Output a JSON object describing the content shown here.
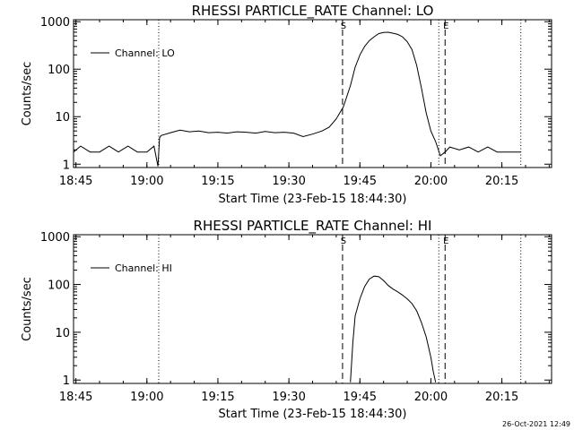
{
  "colors": {
    "background": "#ffffff",
    "foreground": "#000000"
  },
  "date_stamp": "26-Oct-2021 12:49",
  "chart_data": [
    {
      "type": "line",
      "title": "RHESSI PARTICLE_RATE Channel: LO",
      "xlabel": "Start Time (23-Feb-15 18:44:30)",
      "ylabel": "Counts/sec",
      "yscale": "log",
      "ylim": [
        0.85,
        1100
      ],
      "xlim": [
        "18:44:30",
        "20:25:30"
      ],
      "xticks": [
        "18:45",
        "19:00",
        "19:15",
        "19:30",
        "19:45",
        "20:00",
        "20:15"
      ],
      "yticks": [
        "1",
        "10",
        "100",
        "1000"
      ],
      "grid": false,
      "legend": {
        "entries": [
          "Channel: LO"
        ],
        "position": "top-left"
      },
      "markers": [
        {
          "time": "19:02:30",
          "style": "dotted",
          "label": ""
        },
        {
          "time": "19:41:20",
          "style": "dashed",
          "label": "S"
        },
        {
          "time": "20:01:40",
          "style": "dotted",
          "label": ""
        },
        {
          "time": "20:03:00",
          "style": "dashed",
          "label": "E"
        },
        {
          "time": "20:19:00",
          "style": "dotted",
          "label": ""
        }
      ],
      "series": [
        {
          "name": "Channel: LO",
          "x": [
            "18:44:30",
            "18:46:00",
            "18:48:00",
            "18:50:00",
            "18:52:00",
            "18:54:00",
            "18:56:00",
            "18:58:00",
            "19:00:00",
            "19:01:30",
            "19:02:20",
            "19:02:40",
            "19:03:00",
            "19:05:00",
            "19:07:00",
            "19:09:00",
            "19:11:00",
            "19:13:00",
            "19:15:00",
            "19:17:00",
            "19:19:00",
            "19:21:00",
            "19:23:00",
            "19:25:00",
            "19:27:00",
            "19:29:00",
            "19:31:00",
            "19:33:00",
            "19:35:00",
            "19:37:00",
            "19:38:30",
            "19:40:00",
            "19:41:30",
            "19:43:00",
            "19:44:00",
            "19:45:00",
            "19:46:00",
            "19:47:00",
            "19:48:00",
            "19:49:00",
            "19:50:00",
            "19:51:00",
            "19:52:00",
            "19:53:00",
            "19:54:00",
            "19:55:00",
            "19:56:00",
            "19:57:00",
            "19:58:00",
            "19:59:00",
            "20:00:00",
            "20:01:00",
            "20:02:00",
            "20:03:00",
            "20:04:00",
            "20:06:00",
            "20:08:00",
            "20:10:00",
            "20:12:00",
            "20:14:00",
            "20:16:00",
            "20:18:00",
            "20:19:00"
          ],
          "y": [
            1.8,
            2.4,
            1.8,
            1.8,
            2.4,
            1.8,
            2.4,
            1.8,
            1.8,
            2.4,
            0.9,
            3.6,
            4.0,
            4.6,
            5.2,
            4.8,
            5.0,
            4.6,
            4.7,
            4.5,
            4.8,
            4.7,
            4.5,
            4.9,
            4.6,
            4.7,
            4.5,
            3.8,
            4.3,
            5.0,
            6.0,
            9.0,
            16,
            45,
            110,
            200,
            300,
            400,
            480,
            560,
            590,
            600,
            570,
            540,
            480,
            380,
            260,
            120,
            40,
            12,
            5,
            3,
            1.5,
            1.8,
            2.3,
            2.0,
            2.3,
            1.8,
            2.3,
            1.8,
            1.8,
            1.8,
            1.8
          ]
        }
      ]
    },
    {
      "type": "line",
      "title": "RHESSI PARTICLE_RATE Channel: HI",
      "xlabel": "Start Time (23-Feb-15 18:44:30)",
      "ylabel": "Counts/sec",
      "yscale": "log",
      "ylim": [
        0.85,
        1100
      ],
      "xlim": [
        "18:44:30",
        "20:25:30"
      ],
      "xticks": [
        "18:45",
        "19:00",
        "19:15",
        "19:30",
        "19:45",
        "20:00",
        "20:15"
      ],
      "yticks": [
        "1",
        "10",
        "100",
        "1000"
      ],
      "grid": false,
      "legend": {
        "entries": [
          "Channel: HI"
        ],
        "position": "top-left"
      },
      "markers": [
        {
          "time": "19:02:30",
          "style": "dotted",
          "label": ""
        },
        {
          "time": "19:41:20",
          "style": "dashed",
          "label": "S"
        },
        {
          "time": "20:01:40",
          "style": "dotted",
          "label": ""
        },
        {
          "time": "20:03:00",
          "style": "dashed",
          "label": "E"
        },
        {
          "time": "20:19:00",
          "style": "dotted",
          "label": ""
        }
      ],
      "series": [
        {
          "name": "Channel: HI",
          "x": [
            "19:43:00",
            "19:43:30",
            "19:44:00",
            "19:45:00",
            "19:46:00",
            "19:47:00",
            "19:48:00",
            "19:49:00",
            "19:50:00",
            "19:51:00",
            "19:52:00",
            "19:53:00",
            "19:54:00",
            "19:55:00",
            "19:56:00",
            "19:57:00",
            "19:58:00",
            "19:59:00",
            "20:00:00",
            "20:00:30",
            "20:01:00"
          ],
          "y": [
            0.9,
            6,
            22,
            50,
            90,
            130,
            150,
            145,
            120,
            95,
            80,
            70,
            60,
            50,
            40,
            28,
            16,
            8,
            3,
            1.5,
            0.9
          ]
        }
      ]
    }
  ]
}
